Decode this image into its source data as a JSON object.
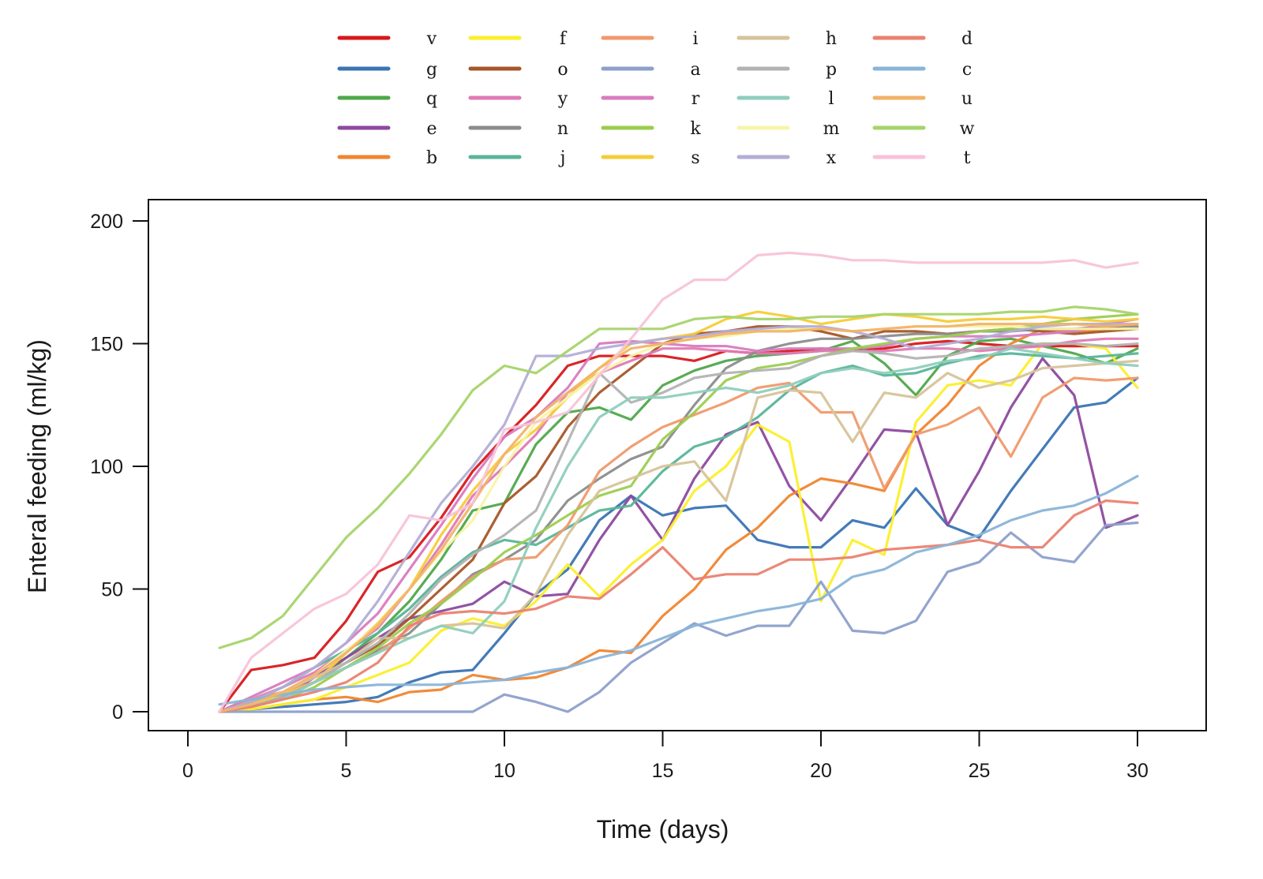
{
  "chart_data": {
    "type": "line",
    "xlabel": "Time (days)",
    "ylabel": "Enteral feeding (ml/kg)",
    "xlim": [
      0,
      30
    ],
    "ylim": [
      0,
      200
    ],
    "xticks": [
      0,
      5,
      10,
      15,
      20,
      25,
      30
    ],
    "yticks": [
      0,
      50,
      100,
      150,
      200
    ],
    "legend": "top",
    "grid": false,
    "x": [
      1,
      2,
      3,
      4,
      5,
      6,
      7,
      8,
      9,
      10,
      11,
      12,
      13,
      14,
      15,
      16,
      17,
      18,
      19,
      20,
      21,
      22,
      23,
      24,
      25,
      26,
      27,
      28,
      29,
      30
    ],
    "series": [
      {
        "name": "v",
        "color": "#d7191c",
        "values": [
          0,
          17,
          19,
          22,
          37,
          57,
          63,
          79,
          98,
          112,
          125,
          141,
          145,
          145,
          145,
          143,
          147,
          146,
          147,
          148,
          147,
          148,
          150,
          151,
          150,
          149,
          149,
          149,
          149,
          149
        ]
      },
      {
        "name": "g",
        "color": "#3a74b4",
        "values": [
          0,
          1,
          2,
          3,
          4,
          6,
          12,
          16,
          17,
          32,
          48,
          58,
          78,
          88,
          80,
          83,
          84,
          70,
          67,
          67,
          78,
          75,
          91,
          76,
          71,
          90,
          107,
          124,
          126,
          136
        ]
      },
      {
        "name": "q",
        "color": "#4fa84a",
        "values": [
          0,
          4,
          8,
          12,
          22,
          32,
          45,
          62,
          82,
          85,
          109,
          122,
          124,
          119,
          133,
          139,
          143,
          145,
          146,
          147,
          151,
          142,
          129,
          145,
          151,
          152,
          149,
          146,
          142,
          148
        ]
      },
      {
        "name": "e",
        "color": "#8d4a9e",
        "values": [
          0,
          2,
          6,
          14,
          22,
          30,
          38,
          41,
          44,
          53,
          47,
          48,
          70,
          88,
          70,
          95,
          113,
          118,
          92,
          78,
          96,
          115,
          114,
          76,
          98,
          124,
          144,
          129,
          75,
          80
        ]
      },
      {
        "name": "b",
        "color": "#f08530",
        "values": [
          0,
          1,
          3,
          5,
          6,
          4,
          8,
          9,
          15,
          13,
          14,
          18,
          25,
          24,
          39,
          50,
          66,
          75,
          88,
          95,
          93,
          90,
          113,
          125,
          141,
          150,
          156,
          155,
          156,
          158
        ]
      },
      {
        "name": "f",
        "color": "#fbef2b",
        "values": [
          0,
          1,
          3,
          5,
          10,
          15,
          20,
          33,
          38,
          35,
          45,
          60,
          47,
          60,
          70,
          90,
          100,
          117,
          110,
          45,
          70,
          64,
          118,
          133,
          135,
          133,
          150,
          150,
          148,
          132
        ]
      },
      {
        "name": "o",
        "color": "#a65628",
        "values": [
          0,
          2,
          6,
          12,
          20,
          27,
          38,
          50,
          62,
          85,
          96,
          116,
          130,
          140,
          150,
          154,
          155,
          157,
          157,
          155,
          152,
          155,
          155,
          154,
          155,
          156,
          155,
          154,
          155,
          156
        ]
      },
      {
        "name": "y",
        "color": "#e07bb4",
        "values": [
          0,
          5,
          10,
          16,
          25,
          34,
          50,
          68,
          88,
          100,
          113,
          130,
          138,
          143,
          148,
          148,
          147,
          146,
          146,
          147,
          147,
          147,
          148,
          148,
          147,
          148,
          149,
          151,
          152,
          152
        ]
      },
      {
        "name": "n",
        "color": "#8c8c8c",
        "values": [
          0,
          3,
          8,
          12,
          18,
          25,
          32,
          44,
          56,
          62,
          70,
          86,
          95,
          103,
          108,
          125,
          140,
          147,
          150,
          152,
          152,
          153,
          154,
          154,
          155,
          155,
          156,
          156,
          157,
          157
        ]
      },
      {
        "name": "j",
        "color": "#5ab59a",
        "values": [
          0,
          4,
          10,
          18,
          25,
          32,
          42,
          55,
          65,
          70,
          68,
          75,
          82,
          84,
          98,
          108,
          112,
          120,
          131,
          138,
          141,
          137,
          138,
          142,
          145,
          146,
          145,
          144,
          145,
          146
        ]
      },
      {
        "name": "i",
        "color": "#f09a6c",
        "values": [
          0,
          5,
          8,
          12,
          18,
          24,
          34,
          45,
          55,
          62,
          63,
          76,
          98,
          108,
          116,
          121,
          126,
          132,
          134,
          122,
          122,
          91,
          113,
          117,
          124,
          104,
          128,
          136,
          135,
          136
        ]
      },
      {
        "name": "a",
        "color": "#8da0cb",
        "values": [
          0,
          0,
          0,
          0,
          0,
          0,
          0,
          0,
          0,
          7,
          4,
          0,
          8,
          20,
          28,
          36,
          31,
          35,
          35,
          53,
          33,
          32,
          37,
          57,
          61,
          73,
          63,
          61,
          76,
          77
        ]
      },
      {
        "name": "r",
        "color": "#d87cc0",
        "values": [
          0,
          6,
          12,
          18,
          28,
          40,
          58,
          76,
          95,
          112,
          120,
          132,
          150,
          151,
          150,
          149,
          149,
          147,
          148,
          148,
          148,
          149,
          152,
          153,
          153,
          153,
          154,
          155,
          158,
          160
        ]
      },
      {
        "name": "k",
        "color": "#9ccd4f",
        "values": [
          0,
          2,
          5,
          10,
          18,
          26,
          36,
          44,
          54,
          65,
          72,
          80,
          88,
          92,
          111,
          122,
          135,
          140,
          142,
          145,
          148,
          150,
          152,
          153,
          155,
          156,
          158,
          160,
          161,
          162
        ]
      },
      {
        "name": "s",
        "color": "#f5cc38",
        "values": [
          0,
          3,
          7,
          12,
          24,
          36,
          50,
          72,
          90,
          105,
          115,
          128,
          140,
          150,
          152,
          154,
          160,
          163,
          161,
          158,
          160,
          162,
          161,
          159,
          160,
          160,
          161,
          160,
          159,
          160
        ]
      },
      {
        "name": "h",
        "color": "#d7c39a",
        "values": [
          0,
          3,
          8,
          14,
          20,
          30,
          30,
          35,
          36,
          34,
          48,
          72,
          90,
          95,
          100,
          102,
          86,
          128,
          131,
          130,
          110,
          130,
          128,
          138,
          132,
          135,
          140,
          141,
          142,
          143
        ]
      },
      {
        "name": "p",
        "color": "#b3b3b3",
        "values": [
          0,
          2,
          6,
          12,
          20,
          28,
          40,
          54,
          64,
          72,
          82,
          110,
          138,
          126,
          130,
          136,
          138,
          139,
          140,
          145,
          147,
          146,
          144,
          145,
          148,
          149,
          150,
          150,
          149,
          150
        ]
      },
      {
        "name": "l",
        "color": "#8fcdbd",
        "values": [
          0,
          2,
          5,
          12,
          18,
          24,
          30,
          35,
          32,
          45,
          75,
          100,
          120,
          128,
          128,
          130,
          132,
          130,
          133,
          138,
          140,
          138,
          140,
          143,
          144,
          148,
          146,
          144,
          142,
          141
        ]
      },
      {
        "name": "m",
        "color": "#f7f4a8",
        "values": [
          0,
          3,
          8,
          15,
          25,
          35,
          50,
          65,
          78,
          100,
          118,
          128,
          138,
          145,
          150,
          152,
          153,
          155,
          156,
          156,
          155,
          156,
          157,
          157,
          157,
          157,
          156,
          156,
          156,
          156
        ]
      },
      {
        "name": "x",
        "color": "#b2aed6",
        "values": [
          0,
          4,
          10,
          18,
          28,
          45,
          65,
          85,
          100,
          117,
          145,
          145,
          148,
          150,
          152,
          153,
          155,
          156,
          157,
          157,
          155,
          152,
          148,
          150,
          152,
          155,
          157,
          158,
          158,
          158
        ]
      },
      {
        "name": "d",
        "color": "#ea8270",
        "values": [
          0,
          2,
          5,
          8,
          12,
          20,
          35,
          40,
          41,
          40,
          42,
          47,
          46,
          56,
          67,
          54,
          56,
          56,
          62,
          62,
          63,
          66,
          67,
          68,
          70,
          67,
          67,
          80,
          86,
          85
        ]
      },
      {
        "name": "c",
        "color": "#8ab4d8",
        "values": [
          3,
          5,
          7,
          9,
          10,
          11,
          11,
          11,
          12,
          13,
          16,
          18,
          22,
          25,
          30,
          35,
          38,
          41,
          43,
          46,
          55,
          58,
          65,
          68,
          72,
          78,
          82,
          84,
          89,
          96
        ]
      },
      {
        "name": "u",
        "color": "#f2b26a",
        "values": [
          0,
          3,
          8,
          15,
          24,
          35,
          50,
          66,
          85,
          105,
          120,
          130,
          140,
          148,
          150,
          152,
          154,
          155,
          155,
          156,
          155,
          156,
          157,
          157,
          158,
          158,
          158,
          158,
          157,
          158
        ]
      },
      {
        "name": "w",
        "color": "#a6d46a",
        "values": [
          26,
          30,
          39,
          55,
          71,
          83,
          97,
          113,
          131,
          141,
          138,
          147,
          156,
          156,
          156,
          160,
          161,
          160,
          160,
          161,
          161,
          162,
          162,
          162,
          162,
          163,
          163,
          165,
          164,
          162
        ]
      },
      {
        "name": "t",
        "color": "#f8c3d9",
        "values": [
          0,
          22,
          32,
          42,
          48,
          60,
          80,
          78,
          85,
          115,
          118,
          122,
          137,
          152,
          168,
          176,
          176,
          186,
          187,
          186,
          184,
          184,
          183,
          183,
          183,
          183,
          183,
          184,
          181,
          183
        ]
      }
    ]
  }
}
